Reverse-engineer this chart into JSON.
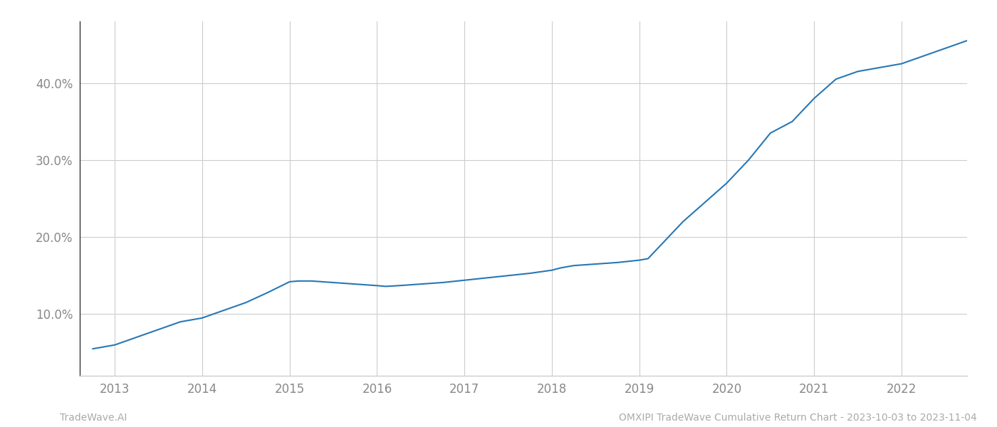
{
  "x_values": [
    2012.75,
    2013.0,
    2013.25,
    2013.5,
    2013.75,
    2014.0,
    2014.25,
    2014.5,
    2014.75,
    2015.0,
    2015.1,
    2015.25,
    2015.5,
    2015.75,
    2016.0,
    2016.1,
    2016.25,
    2016.5,
    2016.75,
    2017.0,
    2017.25,
    2017.5,
    2017.75,
    2018.0,
    2018.1,
    2018.25,
    2018.5,
    2018.75,
    2019.0,
    2019.1,
    2019.25,
    2019.5,
    2019.75,
    2020.0,
    2020.25,
    2020.5,
    2020.75,
    2021.0,
    2021.25,
    2021.5,
    2021.75,
    2022.0,
    2022.25,
    2022.5,
    2022.75
  ],
  "y_values": [
    5.5,
    6.0,
    7.0,
    8.0,
    9.0,
    9.5,
    10.5,
    11.5,
    12.8,
    14.2,
    14.3,
    14.3,
    14.1,
    13.9,
    13.7,
    13.6,
    13.7,
    13.9,
    14.1,
    14.4,
    14.7,
    15.0,
    15.3,
    15.7,
    16.0,
    16.3,
    16.5,
    16.7,
    17.0,
    17.2,
    19.0,
    22.0,
    24.5,
    27.0,
    30.0,
    33.5,
    35.0,
    38.0,
    40.5,
    41.5,
    42.0,
    42.5,
    43.5,
    44.5,
    45.5
  ],
  "line_color": "#2878b5",
  "line_width": 1.5,
  "xlabel": "",
  "ylabel": "",
  "xtick_labels": [
    "2013",
    "2014",
    "2015",
    "2016",
    "2017",
    "2018",
    "2019",
    "2020",
    "2021",
    "2022"
  ],
  "xtick_positions": [
    2013,
    2014,
    2015,
    2016,
    2017,
    2018,
    2019,
    2020,
    2021,
    2022
  ],
  "ytick_values": [
    10.0,
    20.0,
    30.0,
    40.0
  ],
  "ytick_labels": [
    "10.0%",
    "20.0%",
    "30.0%",
    "40.0%"
  ],
  "xlim": [
    2012.6,
    2022.75
  ],
  "ylim": [
    2.0,
    48.0
  ],
  "grid_color": "#cccccc",
  "background_color": "#ffffff",
  "footer_left": "TradeWave.AI",
  "footer_right": "OMXIPI TradeWave Cumulative Return Chart - 2023-10-03 to 2023-11-04",
  "footer_color": "#aaaaaa",
  "footer_fontsize": 10,
  "tick_label_color": "#888888",
  "tick_label_fontsize": 12,
  "left_spine_color": "#333333",
  "bottom_spine_color": "#cccccc"
}
